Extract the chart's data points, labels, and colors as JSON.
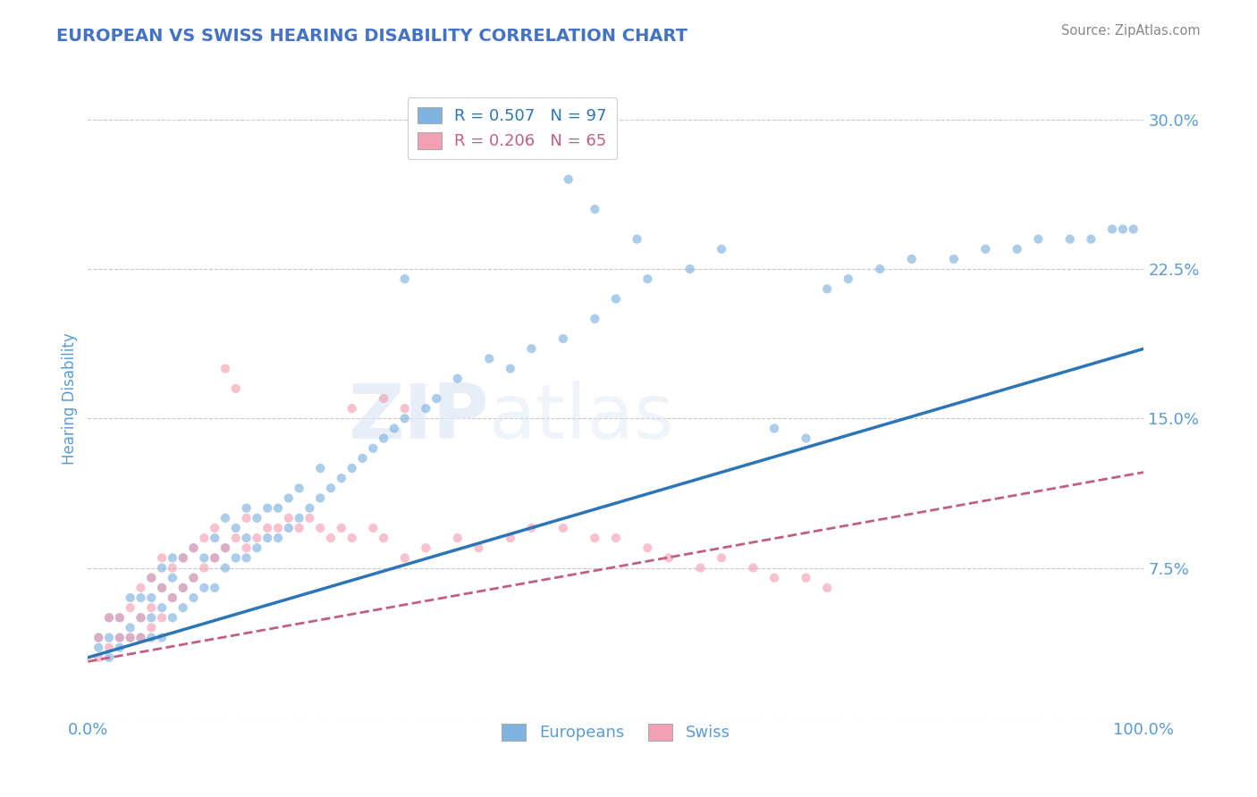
{
  "title": "EUROPEAN VS SWISS HEARING DISABILITY CORRELATION CHART",
  "source": "Source: ZipAtlas.com",
  "xlabel": "",
  "ylabel": "Hearing Disability",
  "xlim": [
    0.0,
    1.0
  ],
  "ylim": [
    0.0,
    0.32
  ],
  "yticks": [
    0.0,
    0.075,
    0.15,
    0.225,
    0.3
  ],
  "ytick_labels": [
    "",
    "7.5%",
    "15.0%",
    "22.5%",
    "30.0%"
  ],
  "xticks": [
    0.0,
    1.0
  ],
  "xtick_labels": [
    "0.0%",
    "100.0%"
  ],
  "background_color": "#ffffff",
  "grid_color": "#c8c8c8",
  "title_color": "#4472c4",
  "axis_color": "#5b9bd5",
  "blue_color": "#7fb3e0",
  "pink_color": "#f4a0b4",
  "blue_line_color": "#2e75b6",
  "pink_line_color": "#c06080",
  "legend_r1": "R = 0.507",
  "legend_n1": "N = 97",
  "legend_r2": "R = 0.206",
  "legend_n2": "N = 65",
  "eu_intercept": 0.03,
  "eu_slope": 0.155,
  "sw_intercept": 0.028,
  "sw_slope": 0.095,
  "europeans_x": [
    0.01,
    0.01,
    0.02,
    0.02,
    0.02,
    0.03,
    0.03,
    0.03,
    0.04,
    0.04,
    0.04,
    0.05,
    0.05,
    0.05,
    0.06,
    0.06,
    0.06,
    0.06,
    0.07,
    0.07,
    0.07,
    0.07,
    0.08,
    0.08,
    0.08,
    0.08,
    0.09,
    0.09,
    0.09,
    0.1,
    0.1,
    0.1,
    0.11,
    0.11,
    0.12,
    0.12,
    0.12,
    0.13,
    0.13,
    0.13,
    0.14,
    0.14,
    0.15,
    0.15,
    0.15,
    0.16,
    0.16,
    0.17,
    0.17,
    0.18,
    0.18,
    0.19,
    0.19,
    0.2,
    0.2,
    0.21,
    0.22,
    0.22,
    0.23,
    0.24,
    0.25,
    0.26,
    0.27,
    0.28,
    0.29,
    0.3,
    0.32,
    0.33,
    0.35,
    0.38,
    0.4,
    0.42,
    0.45,
    0.48,
    0.5,
    0.53,
    0.57,
    0.6,
    0.65,
    0.68,
    0.7,
    0.72,
    0.75,
    0.78,
    0.82,
    0.85,
    0.88,
    0.9,
    0.93,
    0.95,
    0.97,
    0.98,
    0.99,
    0.455,
    0.48,
    0.52,
    0.3
  ],
  "europeans_y": [
    0.035,
    0.04,
    0.03,
    0.04,
    0.05,
    0.035,
    0.04,
    0.05,
    0.04,
    0.045,
    0.06,
    0.04,
    0.05,
    0.06,
    0.04,
    0.05,
    0.06,
    0.07,
    0.04,
    0.055,
    0.065,
    0.075,
    0.05,
    0.06,
    0.07,
    0.08,
    0.055,
    0.065,
    0.08,
    0.06,
    0.07,
    0.085,
    0.065,
    0.08,
    0.065,
    0.08,
    0.09,
    0.075,
    0.085,
    0.1,
    0.08,
    0.095,
    0.08,
    0.09,
    0.105,
    0.085,
    0.1,
    0.09,
    0.105,
    0.09,
    0.105,
    0.095,
    0.11,
    0.1,
    0.115,
    0.105,
    0.11,
    0.125,
    0.115,
    0.12,
    0.125,
    0.13,
    0.135,
    0.14,
    0.145,
    0.15,
    0.155,
    0.16,
    0.17,
    0.18,
    0.175,
    0.185,
    0.19,
    0.2,
    0.21,
    0.22,
    0.225,
    0.235,
    0.145,
    0.14,
    0.215,
    0.22,
    0.225,
    0.23,
    0.23,
    0.235,
    0.235,
    0.24,
    0.24,
    0.24,
    0.245,
    0.245,
    0.245,
    0.27,
    0.255,
    0.24,
    0.22
  ],
  "swiss_x": [
    0.01,
    0.01,
    0.02,
    0.02,
    0.03,
    0.03,
    0.04,
    0.04,
    0.05,
    0.05,
    0.05,
    0.06,
    0.06,
    0.06,
    0.07,
    0.07,
    0.07,
    0.08,
    0.08,
    0.09,
    0.09,
    0.1,
    0.1,
    0.11,
    0.11,
    0.12,
    0.12,
    0.13,
    0.14,
    0.15,
    0.15,
    0.16,
    0.17,
    0.18,
    0.19,
    0.2,
    0.21,
    0.22,
    0.23,
    0.24,
    0.25,
    0.27,
    0.28,
    0.3,
    0.32,
    0.35,
    0.37,
    0.4,
    0.42,
    0.45,
    0.48,
    0.5,
    0.53,
    0.55,
    0.58,
    0.6,
    0.63,
    0.65,
    0.68,
    0.7,
    0.13,
    0.14,
    0.25,
    0.28,
    0.3
  ],
  "swiss_y": [
    0.03,
    0.04,
    0.035,
    0.05,
    0.04,
    0.05,
    0.04,
    0.055,
    0.04,
    0.05,
    0.065,
    0.045,
    0.055,
    0.07,
    0.05,
    0.065,
    0.08,
    0.06,
    0.075,
    0.065,
    0.08,
    0.07,
    0.085,
    0.075,
    0.09,
    0.08,
    0.095,
    0.085,
    0.09,
    0.085,
    0.1,
    0.09,
    0.095,
    0.095,
    0.1,
    0.095,
    0.1,
    0.095,
    0.09,
    0.095,
    0.09,
    0.095,
    0.09,
    0.08,
    0.085,
    0.09,
    0.085,
    0.09,
    0.095,
    0.095,
    0.09,
    0.09,
    0.085,
    0.08,
    0.075,
    0.08,
    0.075,
    0.07,
    0.07,
    0.065,
    0.175,
    0.165,
    0.155,
    0.16,
    0.155
  ]
}
